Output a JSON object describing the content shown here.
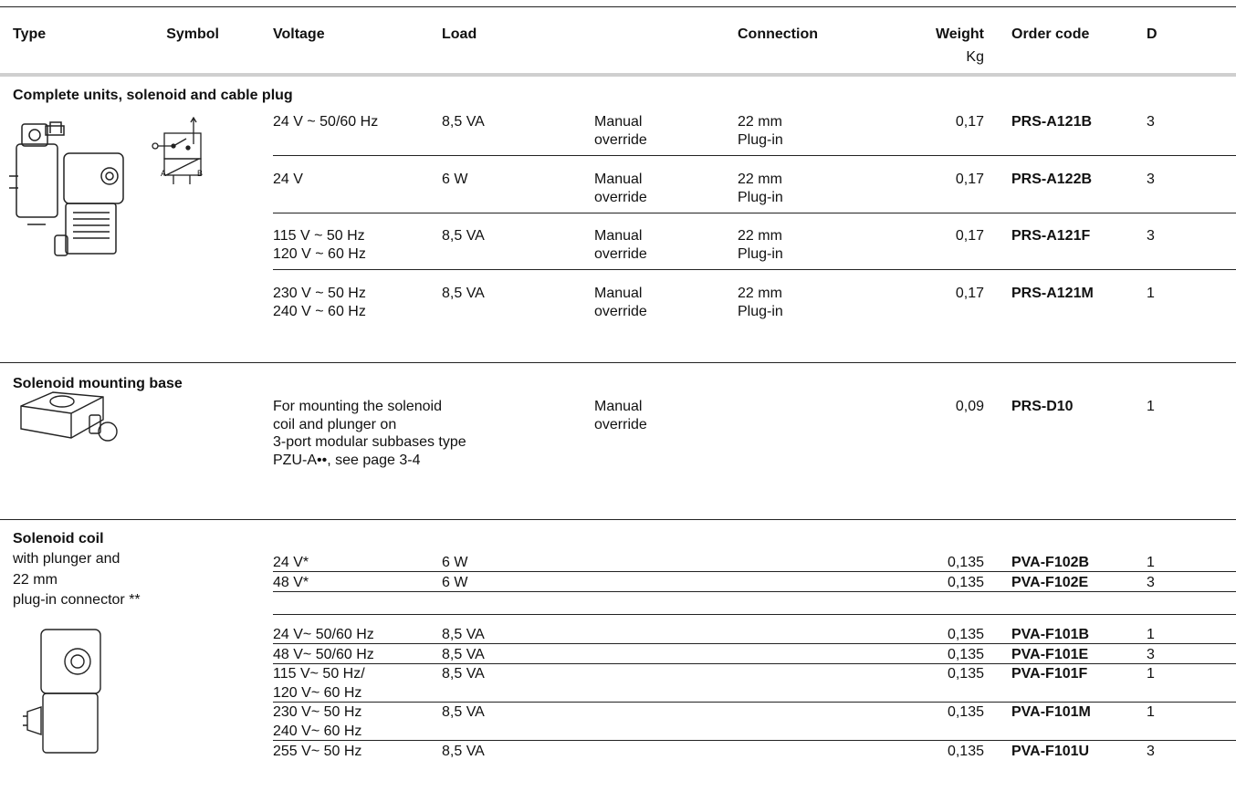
{
  "header": {
    "type": "Type",
    "symbol": "Symbol",
    "voltage": "Voltage",
    "load": "Load",
    "connection": "Connection",
    "weight": "Weight",
    "weight_unit": "Kg",
    "order_code": "Order code",
    "d": "D"
  },
  "sections": [
    {
      "title": "Complete units, solenoid and cable plug",
      "symbol_ports": [
        "A",
        "B"
      ],
      "rows": [
        {
          "voltage": [
            "24 V ~ 50/60 Hz"
          ],
          "load": "8,5 VA",
          "override": [
            "Manual",
            "override"
          ],
          "connection": [
            "22 mm",
            "Plug-in"
          ],
          "weight": "0,17",
          "order_code": "PRS-A121B",
          "d": 3
        },
        {
          "voltage": [
            "24 V"
          ],
          "load": "6 W",
          "override": [
            "Manual",
            "override"
          ],
          "connection": [
            "22 mm",
            "Plug-in"
          ],
          "weight": "0,17",
          "order_code": "PRS-A122B",
          "d": 3
        },
        {
          "voltage": [
            "115 V ~ 50 Hz",
            "120 V ~ 60 Hz"
          ],
          "load": "8,5 VA",
          "override": [
            "Manual",
            "override"
          ],
          "connection": [
            "22 mm",
            "Plug-in"
          ],
          "weight": "0,17",
          "order_code": "PRS-A121F",
          "d": 3
        },
        {
          "voltage": [
            "230 V ~ 50 Hz",
            "240 V ~ 60 Hz"
          ],
          "load": "8,5 VA",
          "override": [
            "Manual",
            "override"
          ],
          "connection": [
            "22 mm",
            "Plug-in"
          ],
          "weight": "0,17",
          "order_code": "PRS-A121M",
          "d": 1
        }
      ]
    },
    {
      "title": "Solenoid mounting base",
      "rows": [
        {
          "description": [
            "For mounting the solenoid",
            "coil and plunger on",
            "3-port modular subbases type",
            "PZU-A••, see page 3-4"
          ],
          "override": [
            "Manual",
            "override"
          ],
          "weight": "0,09",
          "order_code": "PRS-D10",
          "d": 1
        }
      ]
    },
    {
      "title": "Solenoid coil",
      "subtitle": [
        "with plunger and",
        "22 mm",
        "plug-in connector **"
      ],
      "groups": [
        {
          "rows": [
            {
              "voltage": [
                "24 V*"
              ],
              "load": "6 W",
              "weight": "0,135",
              "order_code": "PVA-F102B",
              "d": 1
            },
            {
              "voltage": [
                "48 V*"
              ],
              "load": "6 W",
              "weight": "0,135",
              "order_code": "PVA-F102E",
              "d": 3
            }
          ]
        },
        {
          "rows": [
            {
              "voltage": [
                "24 V~ 50/60 Hz"
              ],
              "load": "8,5 VA",
              "weight": "0,135",
              "order_code": "PVA-F101B",
              "d": 1
            },
            {
              "voltage": [
                "48 V~ 50/60 Hz"
              ],
              "load": "8,5 VA",
              "weight": "0,135",
              "order_code": "PVA-F101E",
              "d": 3
            },
            {
              "voltage": [
                "115 V~ 50 Hz/",
                "120 V~ 60 Hz"
              ],
              "load": "8,5 VA",
              "weight": "0,135",
              "order_code": "PVA-F101F",
              "d": 1
            },
            {
              "voltage": [
                "230 V~ 50 Hz",
                "240 V~ 60 Hz"
              ],
              "load": "8,5 VA",
              "weight": "0,135",
              "order_code": "PVA-F101M",
              "d": 1
            },
            {
              "voltage": [
                "255 V~ 50 Hz"
              ],
              "load": "8,5 VA",
              "weight": "0,135",
              "order_code": "PVA-F101U",
              "d": 3
            }
          ]
        }
      ]
    }
  ]
}
